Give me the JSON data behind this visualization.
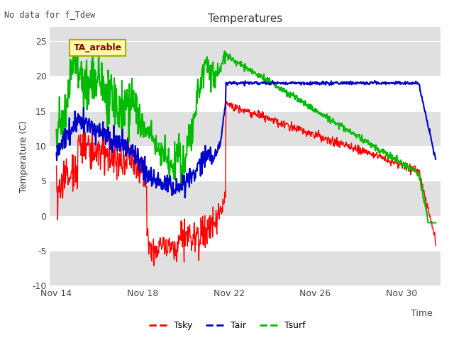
{
  "title": "Temperatures",
  "xlabel": "Time",
  "ylabel": "Temperature (C)",
  "note": "No data for f_Tdew",
  "site_label": "TA_arable",
  "ylim": [
    -10,
    27
  ],
  "yticks": [
    -10,
    -5,
    0,
    5,
    10,
    15,
    20,
    25
  ],
  "background_color": "#ffffff",
  "plot_bg_color": "#e0e0e0",
  "grid_color": "#ffffff",
  "legend_items": [
    "Tsky",
    "Tair",
    "Tsurf"
  ],
  "legend_colors": [
    "#ff0000",
    "#0000cc",
    "#00bb00"
  ],
  "tsky_color": "#ff0000",
  "tair_color": "#0000cc",
  "tsurf_color": "#00bb00",
  "xtick_labels": [
    "Nov 14",
    "Nov 18",
    "Nov 22",
    "Nov 26",
    "Nov 30"
  ],
  "xtick_positions": [
    0,
    4,
    8,
    12,
    16
  ],
  "xlim": [
    -0.3,
    17.8
  ]
}
